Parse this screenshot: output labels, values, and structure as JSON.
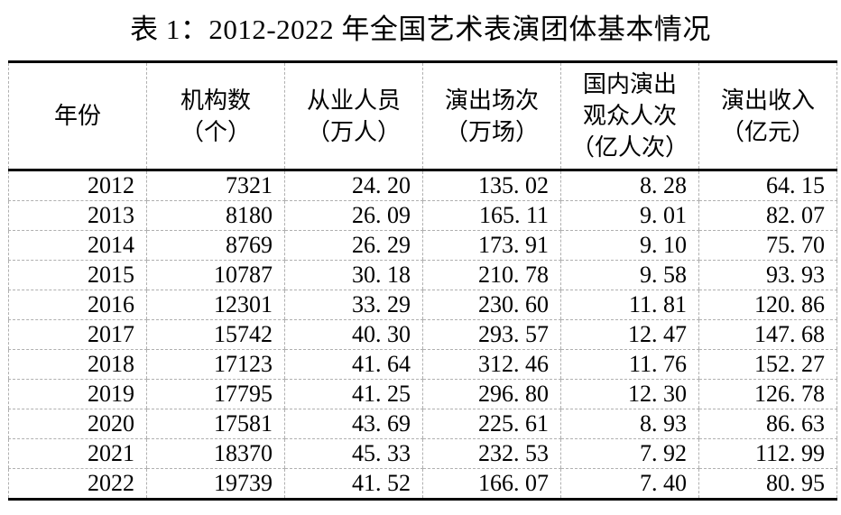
{
  "title": "表 1：2012-2022 年全国艺术表演团体基本情况",
  "colors": {
    "background": "#ffffff",
    "text": "#000000",
    "border_strong": "#000000",
    "border_light": "#b0b0b0"
  },
  "table": {
    "columns": [
      {
        "key": "year",
        "header_lines": [
          "年份"
        ]
      },
      {
        "key": "institutions",
        "header_lines": [
          "机构数",
          "（个）"
        ]
      },
      {
        "key": "employees_10k",
        "header_lines": [
          "从业人员",
          "（万人）"
        ]
      },
      {
        "key": "performances_10k",
        "header_lines": [
          "演出场次",
          "（万场）"
        ]
      },
      {
        "key": "domestic_audience_100m",
        "header_lines": [
          "国内演出",
          "观众人次",
          "（亿人次）"
        ]
      },
      {
        "key": "revenue_100m_yuan",
        "header_lines": [
          "演出收入",
          "（亿元）"
        ]
      }
    ],
    "rows": [
      [
        "2012",
        "7321",
        "24.20",
        "135.02",
        "8.28",
        "64.15"
      ],
      [
        "2013",
        "8180",
        "26.09",
        "165.11",
        "9.01",
        "82.07"
      ],
      [
        "2014",
        "8769",
        "26.29",
        "173.91",
        "9.10",
        "75.70"
      ],
      [
        "2015",
        "10787",
        "30.18",
        "210.78",
        "9.58",
        "93.93"
      ],
      [
        "2016",
        "12301",
        "33.29",
        "230.60",
        "11.81",
        "120.86"
      ],
      [
        "2017",
        "15742",
        "40.30",
        "293.57",
        "12.47",
        "147.68"
      ],
      [
        "2018",
        "17123",
        "41.64",
        "312.46",
        "11.76",
        "152.27"
      ],
      [
        "2019",
        "17795",
        "41.25",
        "296.80",
        "12.30",
        "126.78"
      ],
      [
        "2020",
        "17581",
        "43.69",
        "225.61",
        "8.93",
        "86.63"
      ],
      [
        "2021",
        "18370",
        "45.33",
        "232.53",
        "7.92",
        "112.99"
      ],
      [
        "2022",
        "19739",
        "41.52",
        "166.07",
        "7.40",
        "80.95"
      ]
    ]
  }
}
